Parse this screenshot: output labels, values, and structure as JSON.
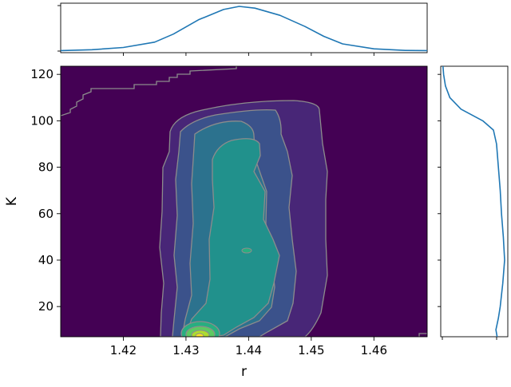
{
  "chart_data": {
    "type": "kde-jointplot",
    "xlabel": "r",
    "ylabel": "K",
    "xlim": [
      1.41,
      1.4685
    ],
    "ylim": [
      7,
      123.5
    ],
    "x_ticks": [
      1.42,
      1.43,
      1.44,
      1.45,
      1.46
    ],
    "x_tick_labels": [
      "1.42",
      "1.43",
      "1.44",
      "1.45",
      "1.46"
    ],
    "y_ticks": [
      20,
      40,
      60,
      80,
      100,
      120
    ],
    "y_tick_labels": [
      "20",
      "40",
      "60",
      "80",
      "100",
      "120"
    ],
    "grid": false,
    "legend": "none",
    "colormap": "viridis",
    "contour_line_color": "#8c8c8c",
    "background_color": "#440154",
    "fill_levels": [
      {
        "level": 0,
        "color": "#440154"
      },
      {
        "level": 1,
        "color": "#482677"
      },
      {
        "level": 2,
        "color": "#3b528b"
      },
      {
        "level": 3,
        "color": "#2c728e"
      },
      {
        "level": 4,
        "color": "#21918c"
      },
      {
        "level": 5,
        "color": "#28ae80"
      },
      {
        "level": 6,
        "color": "#5ec962"
      },
      {
        "level": 7,
        "color": "#addc30"
      },
      {
        "level": 8,
        "color": "#fde725"
      }
    ],
    "marginal_x": {
      "color": "#1f77b4",
      "x": [
        1.41,
        1.415,
        1.42,
        1.425,
        1.428,
        1.432,
        1.436,
        1.4385,
        1.441,
        1.445,
        1.449,
        1.452,
        1.455,
        1.46,
        1.465,
        1.4685
      ],
      "density": [
        0.01,
        0.03,
        0.08,
        0.2,
        0.38,
        0.7,
        0.93,
        1.0,
        0.96,
        0.8,
        0.55,
        0.33,
        0.16,
        0.05,
        0.015,
        0.01
      ]
    },
    "marginal_y": {
      "color": "#1f77b4",
      "y": [
        7,
        10,
        15,
        20,
        30,
        40,
        50,
        60,
        70,
        80,
        90,
        96,
        100,
        105,
        110,
        115,
        120,
        123.5
      ],
      "density": [
        0.88,
        0.86,
        0.9,
        0.93,
        0.97,
        1.0,
        0.98,
        0.95,
        0.93,
        0.9,
        0.87,
        0.82,
        0.65,
        0.3,
        0.12,
        0.05,
        0.02,
        0.01
      ]
    }
  }
}
